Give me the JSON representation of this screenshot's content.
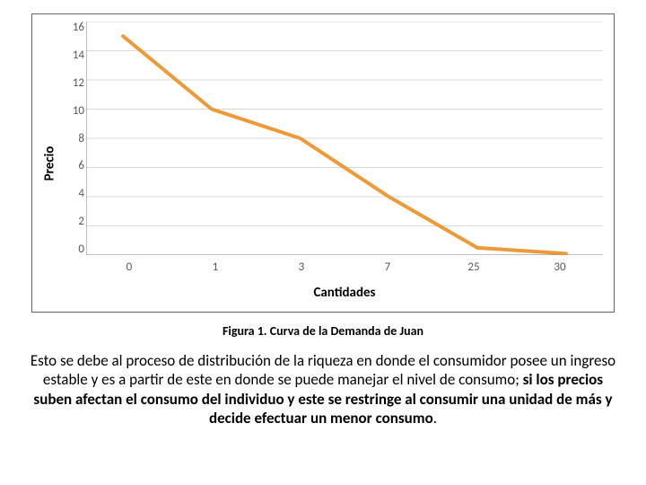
{
  "chart": {
    "type": "line",
    "ylabel": "Precio",
    "xlabel": "Cantidades",
    "ylim": [
      0,
      16
    ],
    "yticks": [
      16,
      14,
      12,
      10,
      8,
      6,
      4,
      2,
      0
    ],
    "xtick_labels": [
      "0",
      "1",
      "3",
      "7",
      "25",
      "30"
    ],
    "categories_index": [
      0,
      1,
      2,
      3,
      4,
      5
    ],
    "values": [
      15,
      10,
      8,
      4,
      0.5,
      0.1
    ],
    "line_color": "#ed9a3a",
    "line_width": 4,
    "grid_color": "#d9d9d9",
    "axis_color": "#808080",
    "tick_color": "#595959",
    "plot_bg": "#ffffff",
    "frame_border": "#666666",
    "label_fontsize": 15,
    "tick_fontsize": 13,
    "marker_style": "none"
  },
  "caption": "Figura 1. Curva de la Demanda de Juan",
  "paragraph": {
    "part1": "Esto se debe al proceso de distribución de la riqueza en donde el consumidor posee un ingreso estable y es a partir de este en donde se puede manejar el nivel de consumo; ",
    "part2_bold": "si los precios suben afectan el consumo del individuo y este se restringe al consumir una unidad de más y decide efectuar un menor consumo",
    "part3": "."
  }
}
